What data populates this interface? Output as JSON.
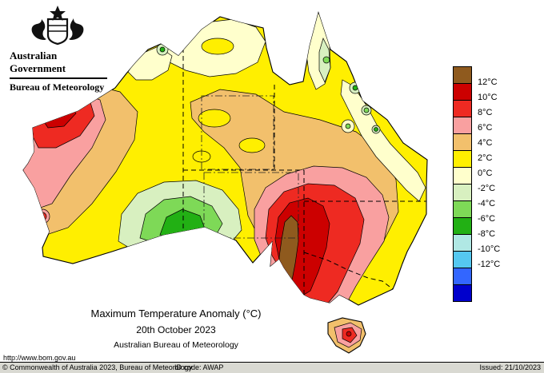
{
  "header": {
    "government": "Australian Government",
    "bureau": "Bureau of Meteorology"
  },
  "caption": {
    "line1": "Maximum Temperature Anomaly (°C)",
    "line2": "20th October 2023",
    "line3": "Australian Bureau of Meteorology"
  },
  "url_text": "http://www.bom.gov.au",
  "footer": {
    "copyright": "© Commonwealth of Australia 2023, Bureau of Meteorology",
    "id_code": "ID code: AWAP",
    "issued": "Issued: 21/10/2023"
  },
  "legend": {
    "unit": "°C",
    "labels": [
      "12°C",
      "10°C",
      "8°C",
      "6°C",
      "4°C",
      "2°C",
      "0°C",
      "-2°C",
      "-4°C",
      "-6°C",
      "-8°C",
      "-10°C",
      "-12°C"
    ],
    "cells": [
      "#8f5a1e",
      "#cc0000",
      "#ee2a22",
      "#f9a0a0",
      "#f2c06c",
      "#ffef00",
      "#ffffcc",
      "#d8f0c0",
      "#7ed957",
      "#22b014",
      "#b0e8e4",
      "#55c8f0",
      "#3366ff",
      "#0000cc"
    ]
  },
  "chart_data": {
    "type": "heatmap",
    "title": "Maximum Temperature Anomaly (°C)",
    "subtitle": "20th October 2023",
    "source": "Australian Bureau of Meteorology",
    "units": "°C",
    "legend_boundaries": [
      12,
      10,
      8,
      6,
      4,
      2,
      0,
      -2,
      -4,
      -6,
      -8,
      -10,
      -12
    ],
    "palette": {
      "brown": "#8f5a1e",
      "dark_red": "#cc0000",
      "red": "#ee2a22",
      "pink": "#f9a0a0",
      "tan": "#f2c06c",
      "yellow": "#ffef00",
      "cream": "#ffffcc",
      "green_pale": "#d8f0c0",
      "green_light": "#7ed957",
      "green": "#22b014",
      "cyan_pale": "#b0e8e4",
      "cyan": "#55c8f0",
      "blue": "#3366ff",
      "dark_blue": "#0000cc"
    },
    "regions": [
      {
        "area": "Pilbara / Gascoyne coast (WA)",
        "anomaly_c": "+6 to +10 with small +10 to +12 core"
      },
      {
        "area": "mid-west WA interior",
        "anomaly_c": "+4 to +6"
      },
      {
        "area": "Nullarbor / Great Victoria Desert (southern interior)",
        "anomaly_c": "0 to -6 (cool pocket)"
      },
      {
        "area": "Top End NT and Kimberley coast",
        "anomaly_c": "0 to +2 with small negative spots"
      },
      {
        "area": "central NT and southwest QLD",
        "anomaly_c": "+4 to +6"
      },
      {
        "area": "Cape York Peninsula",
        "anomaly_c": "-2 to +2"
      },
      {
        "area": "northeast QLD coast",
        "anomaly_c": "-4 to +2"
      },
      {
        "area": "southeast SA / western NSW / Victoria",
        "anomaly_c": "+6 to +12"
      },
      {
        "area": "Murray region near SA-Victoria border",
        "anomaly_c": "greater than +12 (brown core)"
      },
      {
        "area": "Tasmania",
        "anomaly_c": "+4 to +10"
      }
    ]
  }
}
